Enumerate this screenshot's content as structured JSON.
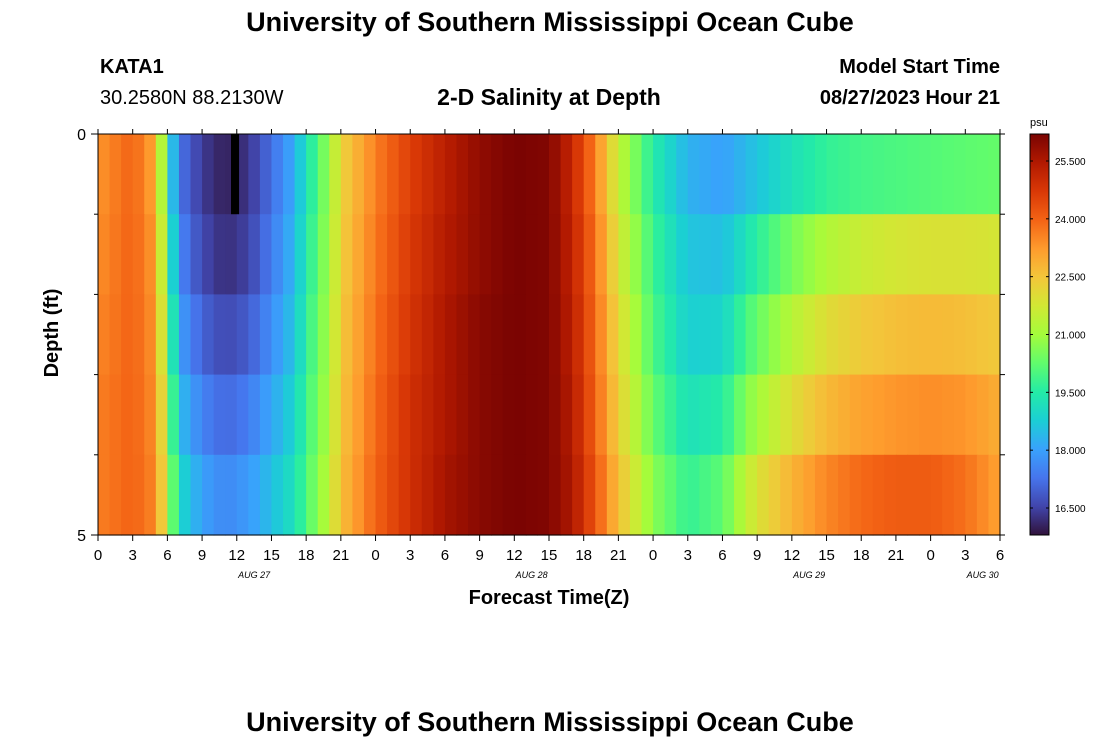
{
  "page": {
    "title": "University of Southern Mississippi Ocean Cube",
    "station": "KATA1",
    "coords": "30.2580N  88.2130W",
    "plot_title": "2-D Salinity at Depth",
    "model_label": "Model Start Time",
    "model_time": "08/27/2023 Hour 21",
    "footer_title": "University of Southern Mississippi Ocean Cube"
  },
  "colors": {
    "scale": [
      "#30123b",
      "#4145ab",
      "#4675ed",
      "#39a2fc",
      "#1bcfd4",
      "#24eca6",
      "#61fc6c",
      "#a4fc3b",
      "#d1e834",
      "#f3c63a",
      "#fe9b2d",
      "#f36315",
      "#d93806",
      "#b11901",
      "#7a0402"
    ]
  },
  "chart_data": {
    "type": "heatmap",
    "title": "2-D Salinity at Depth",
    "xlabel": "Forecast Time(Z)",
    "ylabel": "Depth (ft)",
    "y_tick_labels": [
      "0",
      "5"
    ],
    "ylim": [
      0,
      5
    ],
    "depth_rows": 5,
    "x_tick_labels": [
      "0",
      "3",
      "6",
      "9",
      "12",
      "15",
      "18",
      "21",
      "0",
      "3",
      "6",
      "9",
      "12",
      "15",
      "18",
      "21",
      "0",
      "3",
      "6",
      "9",
      "12",
      "15",
      "18",
      "21",
      "0",
      "3",
      "6"
    ],
    "date_labels": [
      {
        "label": "AUG 27",
        "tick_index": 4
      },
      {
        "label": "AUG 28",
        "tick_index": 12
      },
      {
        "label": "AUG 29",
        "tick_index": 20
      },
      {
        "label": "AUG 30",
        "tick_index": 25
      }
    ],
    "time_range_hours": [
      0,
      78
    ],
    "colorbar": {
      "unit": "psu",
      "range": [
        15.8,
        26.2
      ],
      "tick_labels": [
        "16.500",
        "18.000",
        "19.500",
        "21.000",
        "22.500",
        "24.000",
        "25.500"
      ]
    },
    "keyframes_hours": [
      0,
      3,
      5,
      6,
      7,
      9,
      11,
      13,
      15,
      17,
      18,
      20,
      21,
      24,
      27,
      30,
      33,
      36,
      39,
      41,
      43,
      45,
      48,
      51,
      54,
      56,
      57,
      60,
      63,
      66,
      69,
      72,
      75,
      78
    ],
    "salinity_rows": [
      [
        23.3,
        24.0,
        23.0,
        19.5,
        17.3,
        16.4,
        16.0,
        16.3,
        17.2,
        18.2,
        19.2,
        20.9,
        22.2,
        23.6,
        24.6,
        25.3,
        25.9,
        26.2,
        26.1,
        25.1,
        23.6,
        21.5,
        19.5,
        18.3,
        18.0,
        18.4,
        18.6,
        19.2,
        19.7,
        19.9,
        20.0,
        20.1,
        20.2,
        20.3
      ],
      [
        23.4,
        24.0,
        23.2,
        20.0,
        17.6,
        16.6,
        16.2,
        16.5,
        17.4,
        18.4,
        19.4,
        21.0,
        22.3,
        23.7,
        24.7,
        25.4,
        25.9,
        26.2,
        26.1,
        25.2,
        23.8,
        21.8,
        19.8,
        18.6,
        18.5,
        19.2,
        19.6,
        20.5,
        21.2,
        21.6,
        21.8,
        21.9,
        21.9,
        21.8
      ],
      [
        23.5,
        24.0,
        23.3,
        20.5,
        18.0,
        17.0,
        16.6,
        16.9,
        17.7,
        18.6,
        19.6,
        21.1,
        22.4,
        23.8,
        24.8,
        25.5,
        26.0,
        26.2,
        26.1,
        25.3,
        23.9,
        22.1,
        20.0,
        18.8,
        18.9,
        19.9,
        20.3,
        21.3,
        22.0,
        22.4,
        22.6,
        22.7,
        22.6,
        22.4
      ],
      [
        23.6,
        24.0,
        23.4,
        21.0,
        18.5,
        17.5,
        17.1,
        17.4,
        18.1,
        18.9,
        19.8,
        21.2,
        22.5,
        23.9,
        24.9,
        25.5,
        26.0,
        26.2,
        26.1,
        25.4,
        24.0,
        22.3,
        20.3,
        19.2,
        19.5,
        20.6,
        21.0,
        22.0,
        22.7,
        23.1,
        23.3,
        23.4,
        23.3,
        22.9
      ],
      [
        23.6,
        24.0,
        23.5,
        21.4,
        19.0,
        18.0,
        17.6,
        17.9,
        18.5,
        19.2,
        20.0,
        21.4,
        22.6,
        24.0,
        24.9,
        25.6,
        26.0,
        26.2,
        26.1,
        25.5,
        24.2,
        22.6,
        20.7,
        19.7,
        20.2,
        21.4,
        21.9,
        22.8,
        23.5,
        23.9,
        24.1,
        24.1,
        23.8,
        23.1
      ]
    ],
    "missing_cells": [
      {
        "hour": 11.5,
        "row": 0
      }
    ]
  }
}
